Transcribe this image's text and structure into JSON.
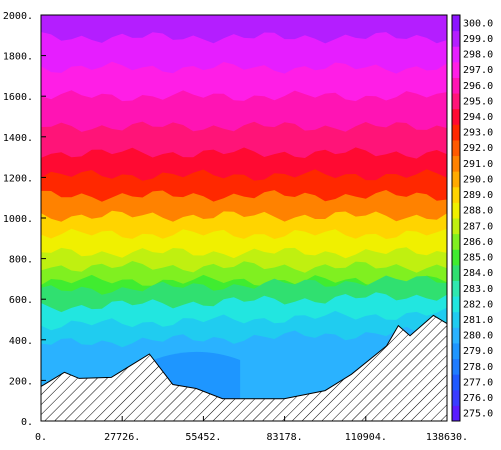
{
  "chart_data": {
    "type": "heatmap",
    "subtype": "filled-contour",
    "title": "",
    "xlabel": "",
    "ylabel": "",
    "xlim": [
      0,
      138630
    ],
    "ylim": [
      0,
      2000
    ],
    "x_ticks": [
      "0.",
      "27726.",
      "55452.",
      "83178.",
      "110904.",
      "138630."
    ],
    "x_tick_values": [
      0,
      27726,
      55452,
      83178,
      110904,
      138630
    ],
    "y_ticks": [
      "0.",
      "200.",
      "400.",
      "600.",
      "800.",
      "1000.",
      "1200.",
      "1400.",
      "1600.",
      "1800.",
      "2000."
    ],
    "y_tick_values": [
      0,
      200,
      400,
      600,
      800,
      1000,
      1200,
      1400,
      1600,
      1800,
      2000
    ],
    "colorbar": {
      "levels": [
        "275.0",
        "276.0",
        "277.0",
        "278.0",
        "279.0",
        "280.0",
        "281.0",
        "282.0",
        "283.0",
        "284.0",
        "285.0",
        "286.0",
        "287.0",
        "288.0",
        "289.0",
        "290.0",
        "291.0",
        "292.0",
        "293.0",
        "294.0",
        "295.0",
        "296.0",
        "297.0",
        "298.0",
        "299.0",
        "300.0"
      ],
      "level_values": [
        275,
        276,
        277,
        278,
        279,
        280,
        281,
        282,
        283,
        284,
        285,
        286,
        287,
        288,
        289,
        290,
        291,
        292,
        293,
        294,
        295,
        296,
        297,
        298,
        299,
        300
      ],
      "colors": [
        "#5a1cff",
        "#3a3cff",
        "#1e5aff",
        "#1e7cff",
        "#1e96ff",
        "#2ab2ff",
        "#20ccf0",
        "#22e6e0",
        "#30e8b0",
        "#30e070",
        "#40ec30",
        "#80f020",
        "#c0f010",
        "#f0f000",
        "#ffd400",
        "#ffaa00",
        "#ff8200",
        "#ff5a00",
        "#ff2800",
        "#ff0a32",
        "#ff1478",
        "#ff14b4",
        "#ff1ee6",
        "#e61eff",
        "#b41eff",
        "#8c14ff"
      ]
    },
    "terrain": {
      "description": "hatched",
      "x": [
        0,
        8000,
        13000,
        24000,
        37000,
        45000,
        53000,
        62000,
        83000,
        97000,
        106000,
        118000,
        122000,
        126000,
        134000,
        138630
      ],
      "y": [
        170,
        240,
        210,
        215,
        330,
        180,
        160,
        110,
        110,
        150,
        230,
        370,
        470,
        420,
        520,
        480
      ]
    },
    "value_bands": [
      {
        "level": 280.0,
        "y_top": 380,
        "low_x": [
          35000,
          68000
        ],
        "low_y_top": 330
      },
      {
        "level": 281.0,
        "y_top": 470
      },
      {
        "level": 282.0,
        "y_top": 560
      },
      {
        "level": 284.0,
        "y_top": 640
      },
      {
        "level": 285.0,
        "y_top": 690
      },
      {
        "level": 286.0,
        "y_top": 760
      },
      {
        "level": 287.0,
        "y_top": 830
      },
      {
        "level": 288.0,
        "y_top": 920
      },
      {
        "level": 289.0,
        "y_top": 1010
      },
      {
        "level": 291.0,
        "y_top": 1110
      },
      {
        "level": 293.0,
        "y_top": 1210
      },
      {
        "level": 294.0,
        "y_top": 1320
      },
      {
        "level": 295.0,
        "y_top": 1450
      },
      {
        "level": 296.0,
        "y_top": 1600
      },
      {
        "level": 297.0,
        "y_top": 1740
      },
      {
        "level": 298.0,
        "y_top": 1890
      },
      {
        "level": 299.0,
        "y_top": 2000
      }
    ]
  }
}
